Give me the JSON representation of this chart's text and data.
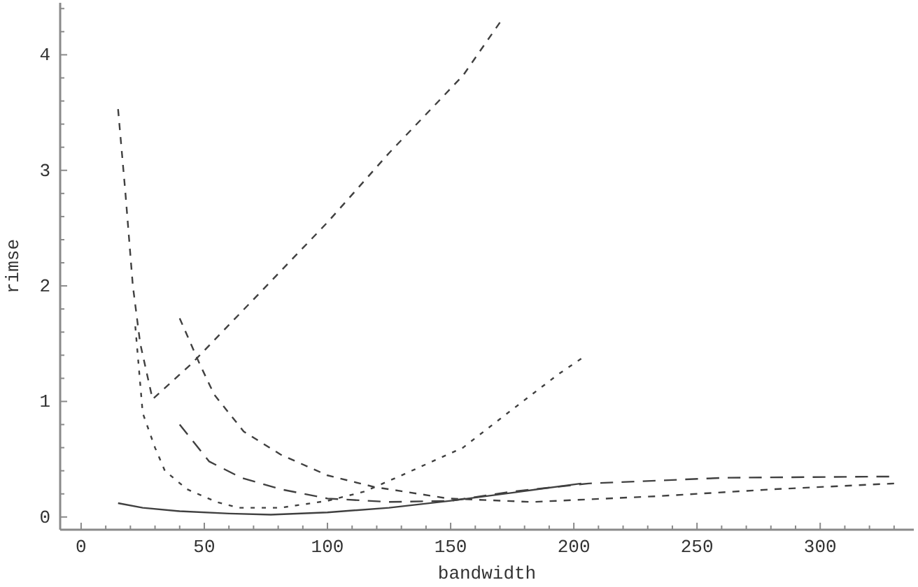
{
  "chart_data": {
    "type": "line",
    "xlabel": "bandwidth",
    "ylabel": "rimse",
    "xlim": [
      -8.5,
      338
    ],
    "ylim": [
      -0.11,
      4.45
    ],
    "xticks": [
      0,
      {
        "value": 10,
        "label": null
      },
      {
        "value": 20,
        "label": null
      },
      {
        "value": 30,
        "label": null
      },
      {
        "value": 40,
        "label": null
      },
      50,
      {
        "value": 60,
        "label": null
      },
      {
        "value": 70,
        "label": null
      },
      {
        "value": 80,
        "label": null
      },
      {
        "value": 90,
        "label": null
      },
      100,
      {
        "value": 110,
        "label": null
      },
      {
        "value": 120,
        "label": null
      },
      {
        "value": 130,
        "label": null
      },
      {
        "value": 140,
        "label": null
      },
      150,
      {
        "value": 160,
        "label": null
      },
      {
        "value": 170,
        "label": null
      },
      {
        "value": 180,
        "label": null
      },
      {
        "value": 190,
        "label": null
      },
      200,
      {
        "value": 210,
        "label": null
      },
      {
        "value": 220,
        "label": null
      },
      {
        "value": 230,
        "label": null
      },
      {
        "value": 240,
        "label": null
      },
      250,
      {
        "value": 260,
        "label": null
      },
      {
        "value": 270,
        "label": null
      },
      {
        "value": 280,
        "label": null
      },
      {
        "value": 290,
        "label": null
      },
      300,
      {
        "value": 310,
        "label": null
      },
      {
        "value": 320,
        "label": null
      },
      {
        "value": 330,
        "label": null
      }
    ],
    "yticks": [
      0,
      {
        "value": 0.2,
        "label": null
      },
      {
        "value": 0.4,
        "label": null
      },
      {
        "value": 0.6,
        "label": null
      },
      {
        "value": 0.8,
        "label": null
      },
      1,
      {
        "value": 1.2,
        "label": null
      },
      {
        "value": 1.4,
        "label": null
      },
      {
        "value": 1.6,
        "label": null
      },
      {
        "value": 1.8,
        "label": null
      },
      2,
      {
        "value": 2.2,
        "label": null
      },
      {
        "value": 2.4,
        "label": null
      },
      {
        "value": 2.6,
        "label": null
      },
      {
        "value": 2.8,
        "label": null
      },
      3,
      {
        "value": 3.2,
        "label": null
      },
      {
        "value": 3.4,
        "label": null
      },
      {
        "value": 3.6,
        "label": null
      },
      {
        "value": 3.8,
        "label": null
      },
      4,
      {
        "value": 4.2,
        "label": null
      },
      {
        "value": 4.4,
        "label": null
      }
    ],
    "grid": false,
    "series": [
      {
        "color": "#404040",
        "line_style": "solid",
        "x": [
          15,
          25,
          40,
          60,
          77,
          100,
          125,
          150,
          175,
          203
        ],
        "values": [
          0.12,
          0.08,
          0.05,
          0.03,
          0.02,
          0.04,
          0.08,
          0.14,
          0.21,
          0.29
        ]
      },
      {
        "color": "#404040",
        "line_style": "dotted",
        "x": [
          22,
          25,
          30,
          34,
          43,
          55,
          64,
          81,
          100,
          115,
          130,
          155,
          175,
          194,
          203
        ],
        "values": [
          1.65,
          0.9,
          0.6,
          0.4,
          0.24,
          0.13,
          0.08,
          0.08,
          0.14,
          0.22,
          0.36,
          0.6,
          0.93,
          1.24,
          1.37
        ]
      },
      {
        "color": "#404040",
        "line_style": "dashed",
        "x": [
          15,
          18,
          21,
          24,
          29,
          45,
          73,
          100,
          125,
          155,
          170
        ],
        "values": [
          3.53,
          2.8,
          2.0,
          1.5,
          1.02,
          1.33,
          1.95,
          2.55,
          3.15,
          3.82,
          4.28
        ]
      },
      {
        "color": "#404040",
        "line_style": "dashed",
        "x": [
          40,
          52,
          65,
          81,
          100,
          125,
          150,
          175,
          206,
          262,
          328
        ],
        "values": [
          0.8,
          0.48,
          0.34,
          0.24,
          0.16,
          0.13,
          0.14,
          0.22,
          0.29,
          0.34,
          0.35
        ]
      },
      {
        "color": "#404040",
        "line_style": "dashed",
        "x": [
          40,
          48,
          54,
          66,
          81,
          100,
          119,
          149,
          183,
          234,
          281,
          330
        ],
        "values": [
          1.72,
          1.33,
          1.06,
          0.74,
          0.54,
          0.36,
          0.26,
          0.16,
          0.13,
          0.18,
          0.24,
          0.29
        ]
      }
    ]
  }
}
